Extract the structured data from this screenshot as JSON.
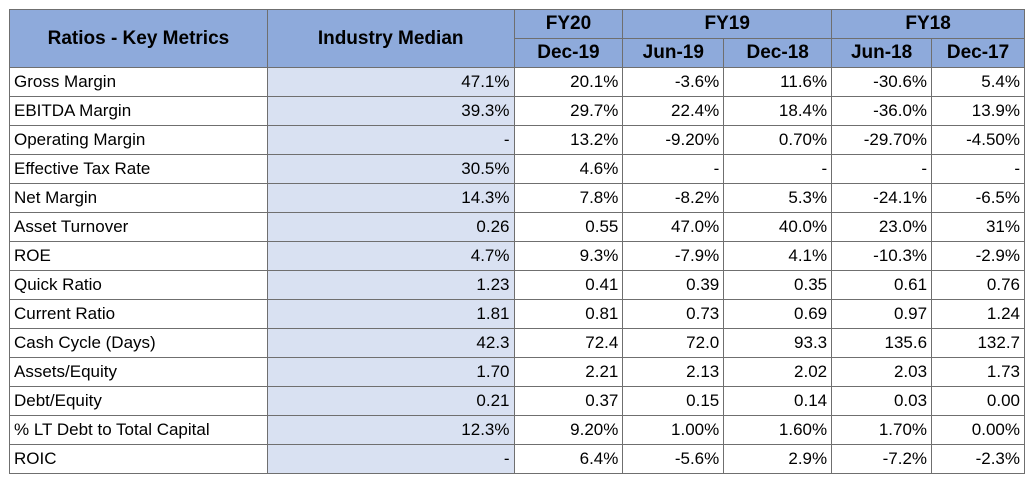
{
  "header": {
    "metric_col": "Ratios - Key Metrics",
    "median_col": "Industry Median",
    "fiscal_years": [
      {
        "label": "FY20",
        "span": 1
      },
      {
        "label": "FY19",
        "span": 2
      },
      {
        "label": "FY18",
        "span": 2
      }
    ],
    "periods": [
      "Dec-19",
      "Jun-19",
      "Dec-18",
      "Jun-18",
      "Dec-17"
    ]
  },
  "rows": [
    {
      "metric": "Gross Margin",
      "median": "47.1%",
      "values": [
        "20.1%",
        "-3.6%",
        "11.6%",
        "-30.6%",
        "5.4%"
      ]
    },
    {
      "metric": "EBITDA Margin",
      "median": "39.3%",
      "values": [
        "29.7%",
        "22.4%",
        "18.4%",
        "-36.0%",
        "13.9%"
      ]
    },
    {
      "metric": "Operating Margin",
      "median": "-",
      "values": [
        "13.2%",
        "-9.20%",
        "0.70%",
        "-29.70%",
        "-4.50%"
      ]
    },
    {
      "metric": "Effective Tax Rate",
      "median": "30.5%",
      "values": [
        "4.6%",
        "-",
        "-",
        "-",
        "-"
      ]
    },
    {
      "metric": "Net Margin",
      "median": "14.3%",
      "values": [
        "7.8%",
        "-8.2%",
        "5.3%",
        "-24.1%",
        "-6.5%"
      ]
    },
    {
      "metric": "Asset Turnover",
      "median": "0.26",
      "values": [
        "0.55",
        "47.0%",
        "40.0%",
        "23.0%",
        "31%"
      ]
    },
    {
      "metric": "ROE",
      "median": "4.7%",
      "values": [
        "9.3%",
        "-7.9%",
        "4.1%",
        "-10.3%",
        "-2.9%"
      ]
    },
    {
      "metric": "Quick Ratio",
      "median": "1.23",
      "values": [
        "0.41",
        "0.39",
        "0.35",
        "0.61",
        "0.76"
      ]
    },
    {
      "metric": "Current Ratio",
      "median": "1.81",
      "values": [
        "0.81",
        "0.73",
        "0.69",
        "0.97",
        "1.24"
      ]
    },
    {
      "metric": "Cash Cycle (Days)",
      "median": "42.3",
      "values": [
        "72.4",
        "72.0",
        "93.3",
        "135.6",
        "132.7"
      ]
    },
    {
      "metric": "Assets/Equity",
      "median": "1.70",
      "values": [
        "2.21",
        "2.13",
        "2.02",
        "2.03",
        "1.73"
      ]
    },
    {
      "metric": "Debt/Equity",
      "median": "0.21",
      "values": [
        "0.37",
        "0.15",
        "0.14",
        "0.03",
        "0.00"
      ]
    },
    {
      "metric": "% LT Debt to Total Capital",
      "median": "12.3%",
      "values": [
        "9.20%",
        "1.00%",
        "1.60%",
        "1.70%",
        "0.00%"
      ]
    },
    {
      "metric": "ROIC",
      "median": "-",
      "values": [
        "6.4%",
        "-5.6%",
        "2.9%",
        "-7.2%",
        "-2.3%"
      ]
    }
  ],
  "colors": {
    "header_bg": "#8eaadb",
    "median_bg": "#d9e1f2",
    "border": "#6f6f6f"
  }
}
